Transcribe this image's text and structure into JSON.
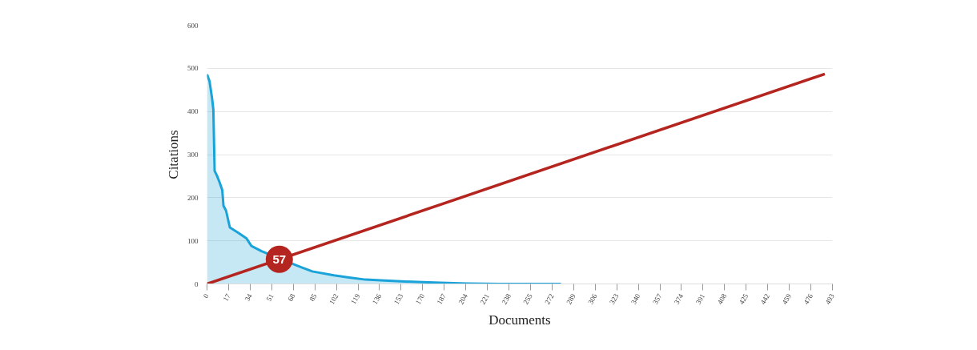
{
  "chart_data": {
    "type": "area",
    "xlabel": "Documents",
    "ylabel": "Citations",
    "xlim": [
      0,
      493
    ],
    "ylim": [
      0,
      600
    ],
    "xticks": [
      0,
      17,
      34,
      51,
      68,
      85,
      102,
      119,
      136,
      153,
      170,
      187,
      204,
      221,
      238,
      255,
      272,
      289,
      306,
      323,
      340,
      357,
      374,
      391,
      408,
      425,
      442,
      459,
      476,
      493
    ],
    "yticks": [
      0,
      100,
      200,
      300,
      400,
      500,
      600
    ],
    "grid": "y",
    "series": [
      {
        "color": "#1aa3d9",
        "x": [
          0,
          2,
          4,
          5,
          6,
          8,
          10,
          12,
          13,
          15,
          18,
          24,
          31,
          35,
          39,
          43,
          69,
          75,
          83,
          100,
          112,
          125,
          140,
          153,
          170,
          184,
          205,
          230,
          255,
          279
        ],
        "values": [
          486,
          470,
          430,
          404,
          262,
          250,
          235,
          218,
          181,
          170,
          131,
          120,
          106,
          88,
          82,
          76,
          45,
          38,
          29,
          20,
          15,
          10,
          8,
          6,
          4,
          3,
          1,
          0,
          0,
          0
        ]
      },
      {
        "type": "line",
        "color": "#b5251f",
        "x": [
          0,
          487
        ],
        "values": [
          0,
          487
        ]
      }
    ],
    "annotations": [
      {
        "text": "57",
        "x": 57,
        "y": 57
      }
    ]
  }
}
